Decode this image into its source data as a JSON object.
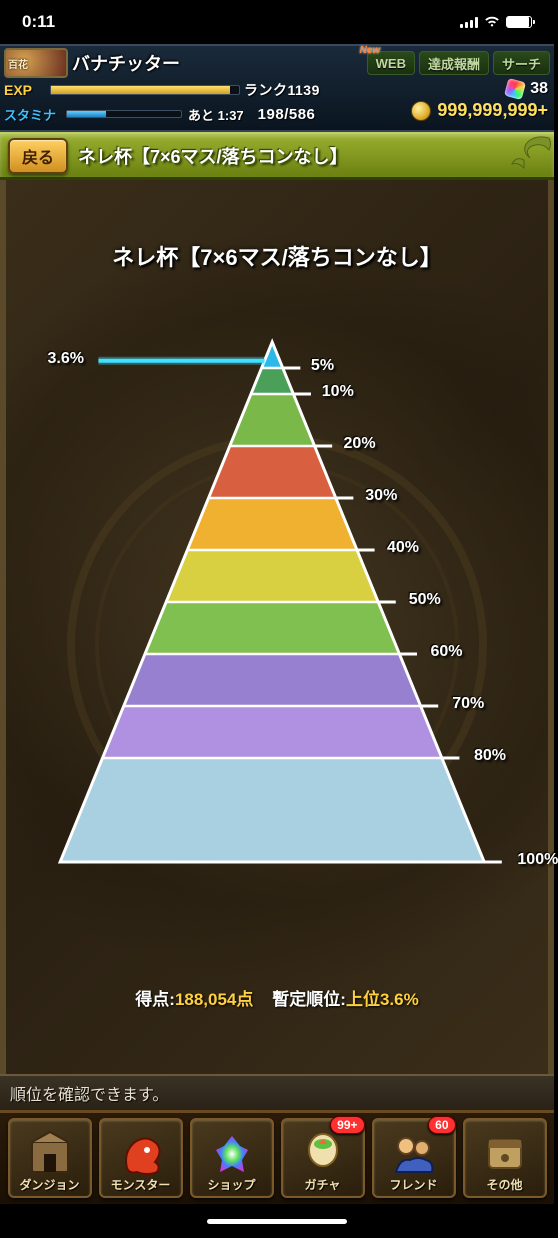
{
  "status_bar": {
    "time": "0:11"
  },
  "player": {
    "avatar_tag": "百花",
    "name": "バナチッター",
    "tabs": {
      "web": "WEB",
      "rewards": "達成報酬",
      "search": "サーチ"
    },
    "exp_label": "EXP",
    "exp_fill_pct": 95,
    "rank_label": "ランク",
    "rank_value": "1139",
    "stamina_label": "スタミナ",
    "stamina_fill_pct": 34,
    "stamina_time_prefix": "あと",
    "stamina_time": "1:37",
    "stamina_value": "198/586",
    "gems": "38",
    "coins": "999,999,999+"
  },
  "title_bar": {
    "back": "戻る",
    "title": "ネレ杯【7×6マス/落ちコンなし】"
  },
  "ranking": {
    "chart_title": "ネレ杯【7×6マス/落ちコンなし】",
    "player_pct_label": "3.6%",
    "player_pct_value": 3.6,
    "bands": [
      {
        "top_pct": 0,
        "bottom_pct": 5,
        "color": "#2cb8e8",
        "label": "5%"
      },
      {
        "top_pct": 5,
        "bottom_pct": 10,
        "color": "#4aa058",
        "label": "10%"
      },
      {
        "top_pct": 10,
        "bottom_pct": 20,
        "color": "#7ab84a",
        "label": "20%"
      },
      {
        "top_pct": 20,
        "bottom_pct": 30,
        "color": "#d86040",
        "label": "30%"
      },
      {
        "top_pct": 30,
        "bottom_pct": 40,
        "color": "#f0b030",
        "label": "40%"
      },
      {
        "top_pct": 40,
        "bottom_pct": 50,
        "color": "#d8d040",
        "label": "50%"
      },
      {
        "top_pct": 50,
        "bottom_pct": 60,
        "color": "#80c050",
        "label": "60%"
      },
      {
        "top_pct": 60,
        "bottom_pct": 70,
        "color": "#9880d0",
        "label": "70%"
      },
      {
        "top_pct": 70,
        "bottom_pct": 80,
        "color": "#b090e0",
        "label": "80%"
      },
      {
        "top_pct": 80,
        "bottom_pct": 100,
        "color": "#a8d0e0",
        "label": "100%"
      }
    ],
    "score_label": "得点:",
    "score_value": "188,054点",
    "rank_label": "暫定順位:",
    "rank_value": "上位3.6%",
    "outline_color": "#ffffff",
    "marker_color": "#40e0ff"
  },
  "hint": {
    "text": "順位を確認できます。"
  },
  "nav": {
    "items": [
      {
        "id": "dungeon",
        "label": "ダンジョン",
        "badge": null
      },
      {
        "id": "monster",
        "label": "モンスター",
        "badge": null
      },
      {
        "id": "shop",
        "label": "ショップ",
        "badge": null
      },
      {
        "id": "gacha",
        "label": "ガチャ",
        "badge": "99+"
      },
      {
        "id": "friend",
        "label": "フレンド",
        "badge": "60"
      },
      {
        "id": "other",
        "label": "その他",
        "badge": null
      }
    ]
  }
}
